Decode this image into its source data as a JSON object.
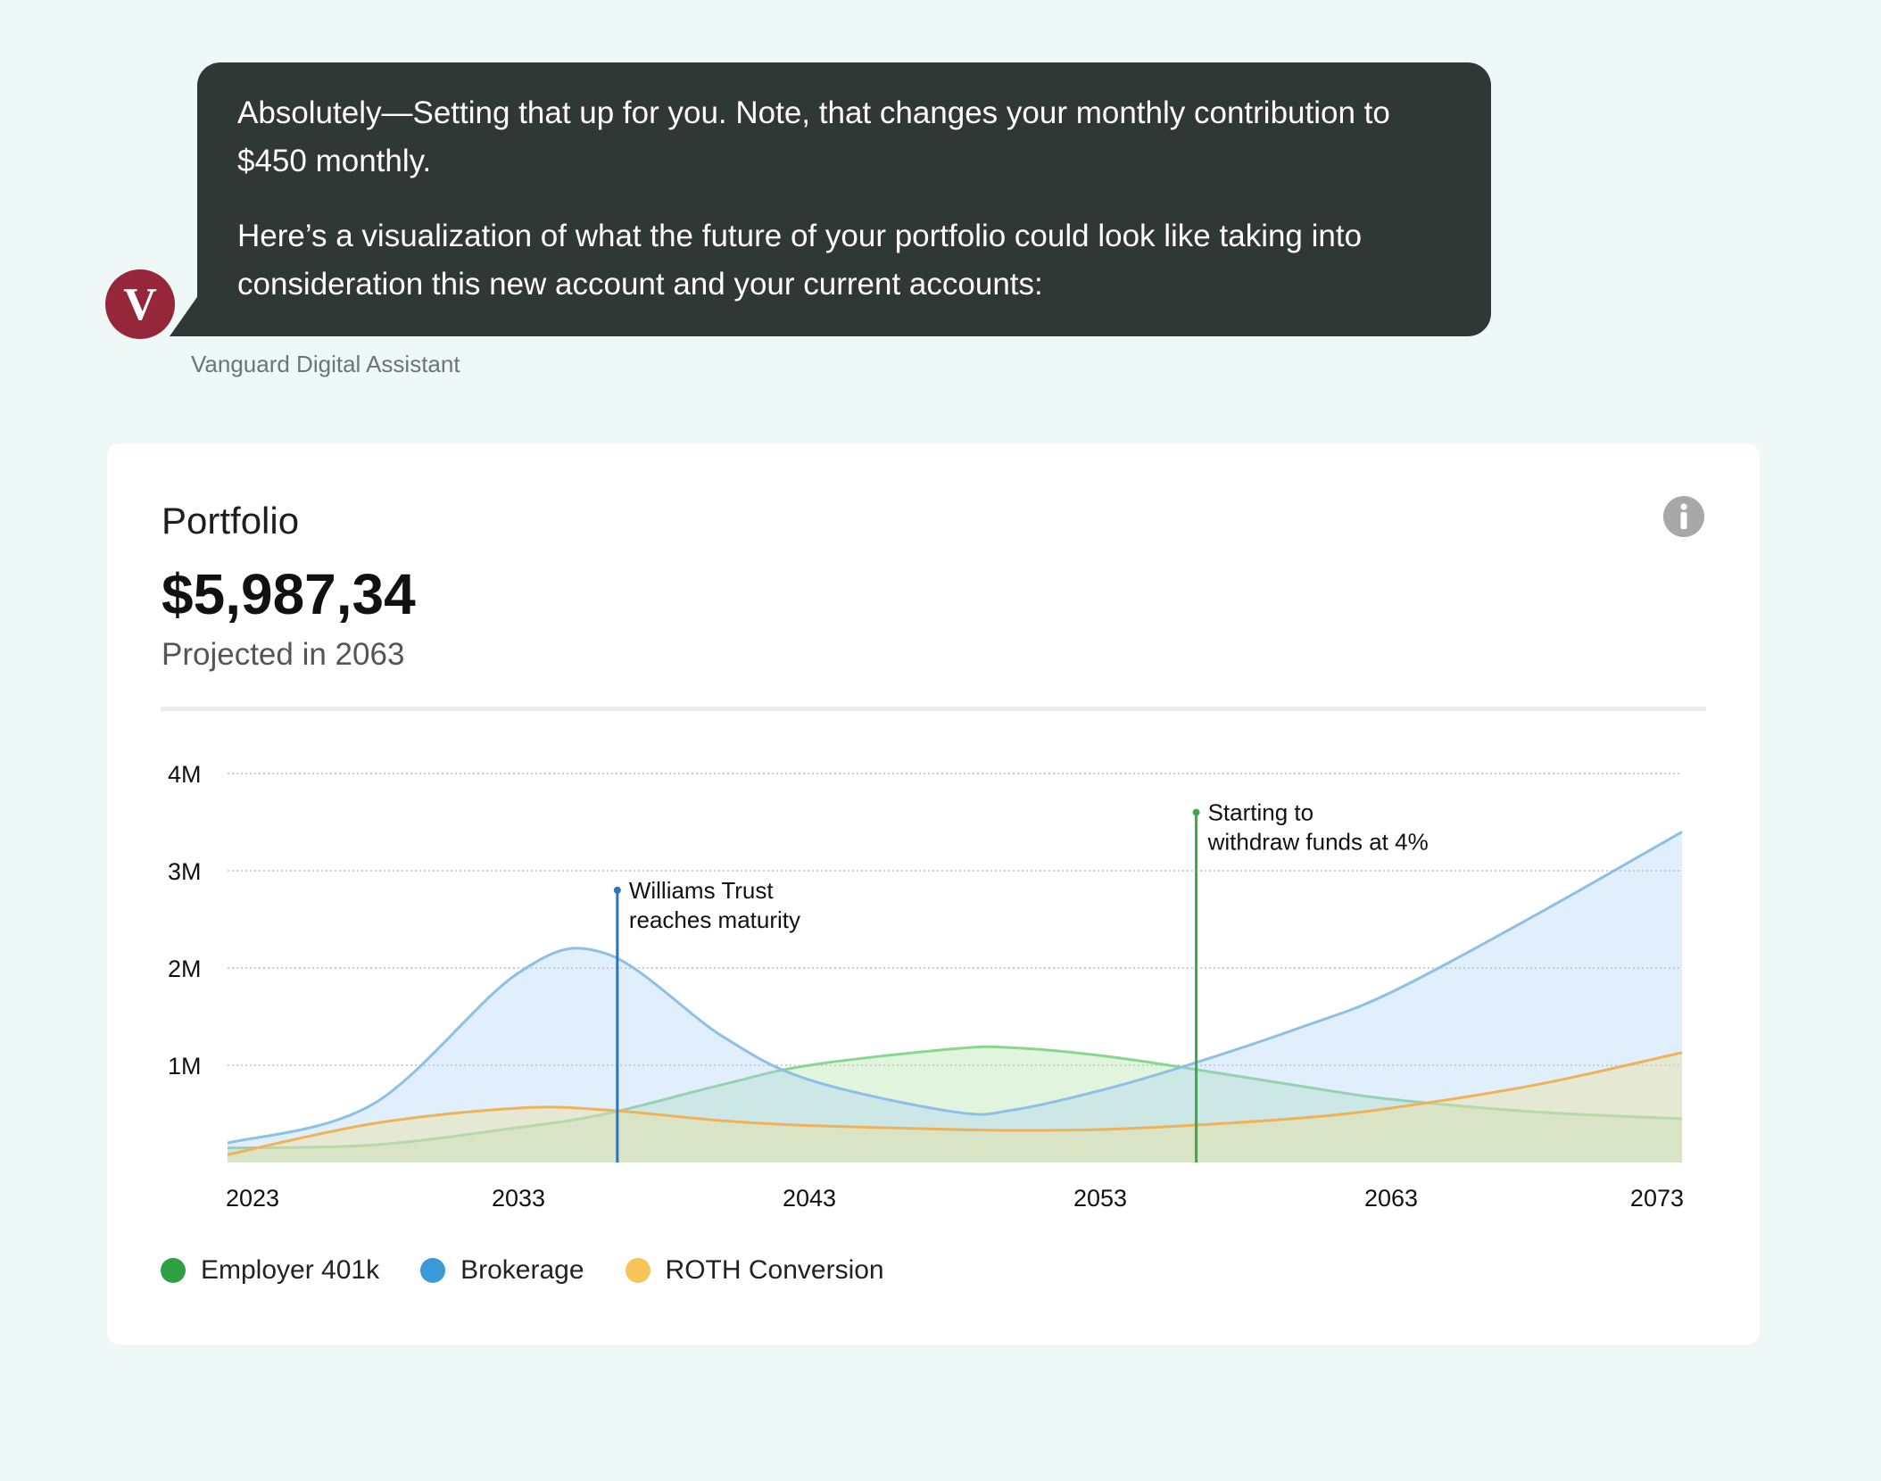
{
  "message": {
    "paragraph1": "Absolutely—Setting that up for you. Note, that changes your monthly contribution to $450 monthly.",
    "paragraph2": "Here’s a visualization of what the future of your portfolio could look like taking into consideration this new account and your current accounts:",
    "avatar_letter": "V",
    "avatar_color": "#96263a",
    "bubble_color": "#2f3835",
    "sender": "Vanguard Digital Assistant"
  },
  "card": {
    "title": "Portfolio",
    "amount": "$5,987,34",
    "subtitle": "Projected in 2063",
    "info_icon": "info-icon"
  },
  "chart_data": {
    "type": "area",
    "x": [
      2023,
      2028,
      2033,
      2036,
      2040,
      2043,
      2048,
      2050,
      2053,
      2056,
      2060,
      2063,
      2068,
      2073
    ],
    "xticks": [
      "2023",
      "2033",
      "2043",
      "2053",
      "2063",
      "2073"
    ],
    "yticks": [
      "1M",
      "2M",
      "3M",
      "4M"
    ],
    "ylim": [
      0,
      4000000
    ],
    "xlim": [
      2023,
      2073
    ],
    "grid": true,
    "series": [
      {
        "name": "Employer 401k",
        "color": "#3aaa45",
        "values": [
          150000,
          180000,
          360000,
          500000,
          800000,
          1000000,
          1170000,
          1180000,
          1100000,
          970000,
          780000,
          650000,
          520000,
          450000
        ]
      },
      {
        "name": "Brokerage",
        "color": "#3a9ad9",
        "values": [
          200000,
          600000,
          1950000,
          2150000,
          1300000,
          850000,
          520000,
          540000,
          740000,
          1000000,
          1400000,
          1750000,
          2550000,
          3400000
        ]
      },
      {
        "name": "ROTH Conversion",
        "color": "#f5c55a",
        "values": [
          80000,
          400000,
          560000,
          540000,
          430000,
          380000,
          340000,
          330000,
          340000,
          380000,
          460000,
          560000,
          800000,
          1130000
        ]
      }
    ],
    "annotations": [
      {
        "x": 2036.4,
        "y": 2800000,
        "line1": "Williams Trust",
        "line2": "reaches maturity",
        "color": "#2e74b8"
      },
      {
        "x": 2056.3,
        "y": 3600000,
        "line1": "Starting to",
        "line2": "withdraw funds at 4%",
        "color": "#3aaa45"
      }
    ],
    "legend_position": "bottom-left"
  }
}
